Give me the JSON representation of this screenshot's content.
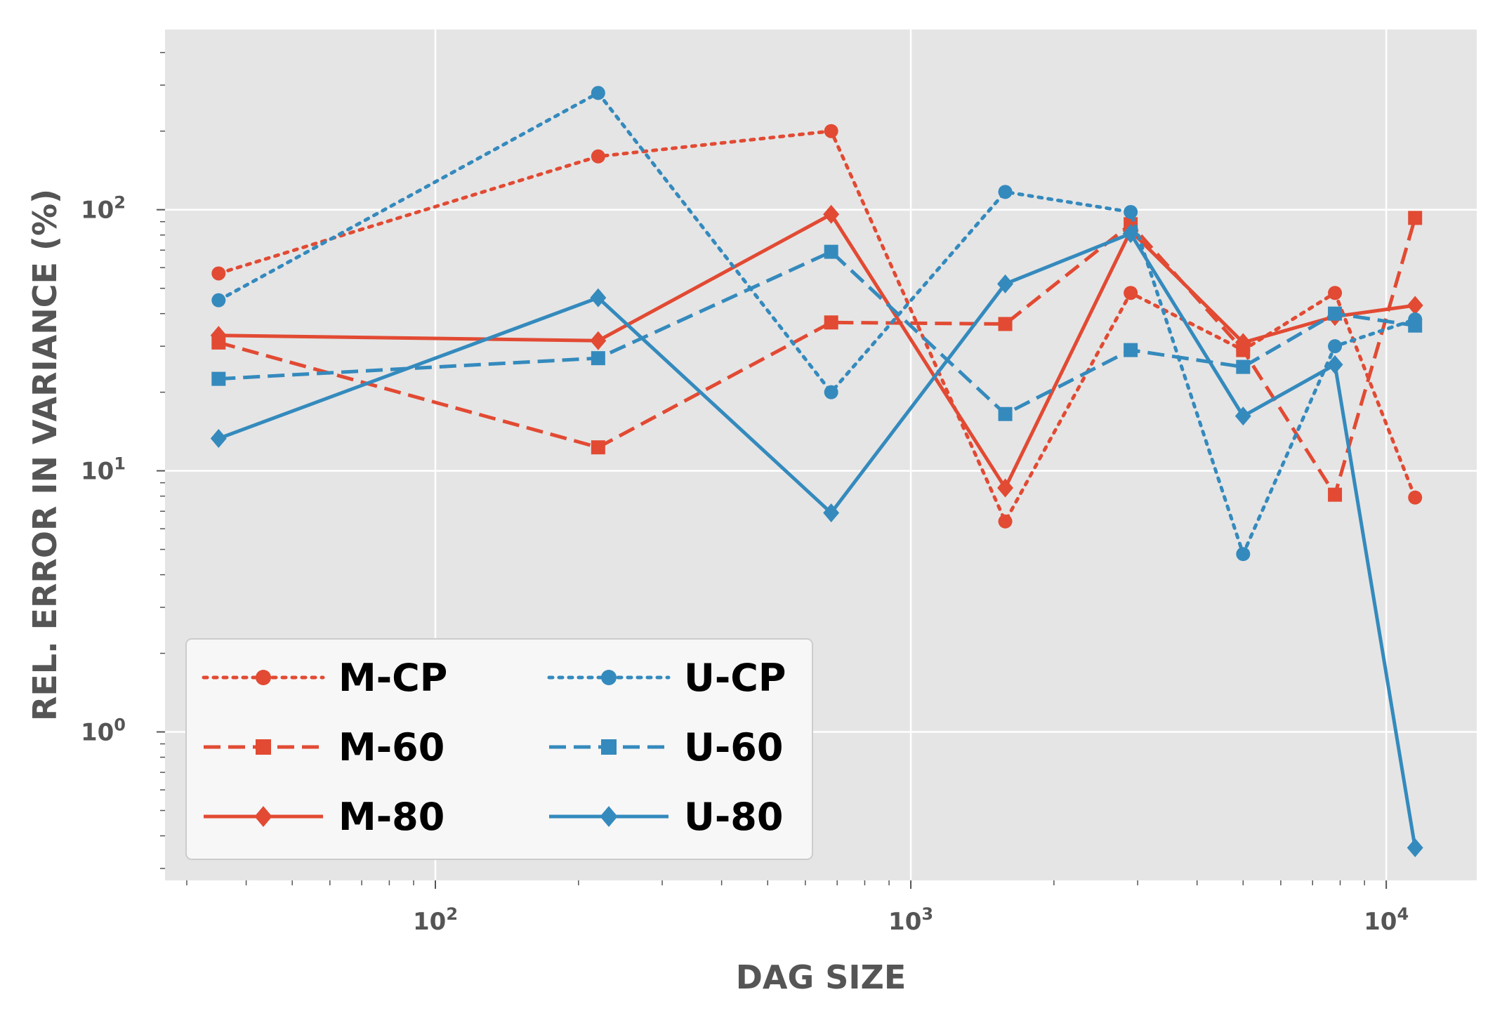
{
  "chart_data": {
    "type": "line",
    "title": "",
    "xlabel": "DAG SIZE",
    "ylabel": "REL. ERROR IN VARIANCE (%)",
    "xscale": "log",
    "yscale": "log",
    "xlim": [
      27,
      15500
    ],
    "ylim": [
      0.27,
      490
    ],
    "grid": true,
    "legend_position": "lower-left",
    "legend_columns": 2,
    "x_ticks": [
      {
        "value": 100,
        "base": "10",
        "exp": "2"
      },
      {
        "value": 1000,
        "base": "10",
        "exp": "3"
      },
      {
        "value": 10000,
        "base": "10",
        "exp": "4"
      }
    ],
    "y_ticks": [
      {
        "value": 1,
        "base": "10",
        "exp": "0"
      },
      {
        "value": 10,
        "base": "10",
        "exp": "1"
      },
      {
        "value": 100,
        "base": "10",
        "exp": "2"
      }
    ],
    "x": [
      35,
      220,
      680,
      1580,
      2900,
      5000,
      7800,
      11500
    ],
    "series": [
      {
        "name": "M-CP",
        "color": "#e24a33",
        "dash": "dotted",
        "marker": "circle",
        "values": [
          57,
          160,
          200,
          6.4,
          48,
          29,
          48,
          7.9
        ]
      },
      {
        "name": "M-60",
        "color": "#e24a33",
        "dash": "dashed",
        "marker": "square",
        "values": [
          31,
          12.3,
          37,
          36.5,
          88,
          29,
          8.1,
          93
        ]
      },
      {
        "name": "M-80",
        "color": "#e24a33",
        "dash": "solid",
        "marker": "diamond",
        "values": [
          33,
          31.5,
          96,
          8.6,
          83,
          31,
          39,
          43
        ]
      },
      {
        "name": "U-CP",
        "color": "#348abd",
        "dash": "dotted",
        "marker": "circle",
        "values": [
          45,
          280,
          20,
          117,
          98,
          4.8,
          30,
          38
        ]
      },
      {
        "name": "U-60",
        "color": "#348abd",
        "dash": "dashed",
        "marker": "square",
        "values": [
          22.5,
          27,
          69,
          16.5,
          29,
          25,
          40,
          36
        ]
      },
      {
        "name": "U-80",
        "color": "#348abd",
        "dash": "solid",
        "marker": "diamond",
        "values": [
          13.3,
          46,
          6.9,
          52,
          81,
          16.2,
          25.5,
          0.36
        ]
      }
    ]
  }
}
